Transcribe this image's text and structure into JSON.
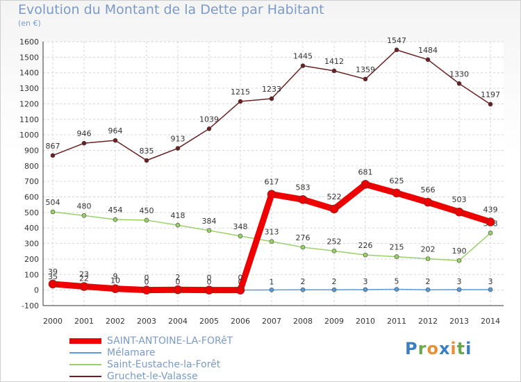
{
  "chart_data": {
    "type": "line",
    "title": "Evolution du Montant de la Dette par Habitant",
    "subtitle": "(en €)",
    "xlabel": "",
    "ylabel": "",
    "ylim": [
      -100,
      1600
    ],
    "yticks": [
      -100,
      0,
      100,
      200,
      300,
      400,
      500,
      600,
      700,
      800,
      900,
      1000,
      1100,
      1200,
      1300,
      1400,
      1500,
      1600
    ],
    "x": [
      "2000",
      "2001",
      "2002",
      "2003",
      "2004",
      "2005",
      "2006",
      "2007",
      "2008",
      "2009",
      "2010",
      "2011",
      "2012",
      "2013",
      "2014"
    ],
    "grid": true,
    "legend_position": "bottom-left",
    "series": [
      {
        "name": "Gruchet-le-Valasse",
        "color": "#6b1f22",
        "values": [
          867,
          946,
          964,
          835,
          913,
          1039,
          1215,
          1233,
          1445,
          1412,
          1359,
          1547,
          1484,
          1330,
          1197
        ]
      },
      {
        "name": "Saint-Eustache-la-Forêt",
        "color": "#99d066",
        "values": [
          504,
          480,
          454,
          450,
          418,
          384,
          348,
          313,
          276,
          252,
          226,
          215,
          202,
          190,
          368
        ]
      },
      {
        "name": "Mélamare",
        "color": "#5b9bd5",
        "values": [
          35,
          22,
          10,
          0,
          0,
          0,
          0,
          1,
          2,
          2,
          3,
          5,
          2,
          3,
          3
        ]
      },
      {
        "name": "SAINT-ANTOINE-LA-FORêT",
        "color": "#ee0000",
        "values": [
          39,
          23,
          9,
          0,
          2,
          0,
          0,
          617,
          583,
          522,
          681,
          625,
          566,
          503,
          439
        ]
      }
    ]
  },
  "logo": {
    "letters": [
      "P",
      "r",
      "o",
      "x",
      "i",
      "t",
      "i"
    ],
    "colors": [
      "#3a7fc1",
      "#6aa84f",
      "#e69138",
      "#3a7fc1",
      "#e69138",
      "#6aa84f",
      "#3a7fc1"
    ]
  }
}
